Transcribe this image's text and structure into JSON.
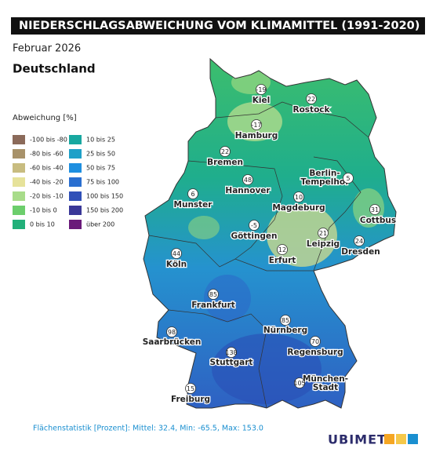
{
  "header": {
    "title": "NIEDERSCHLAGSABWEICHUNG VOM KLIMAMITTEL (1991-2020)",
    "subtitle": "Februar 2026",
    "region": "Deutschland"
  },
  "legend": {
    "title": "Abweichung [%]",
    "items": [
      {
        "label": "-100 bis -80",
        "color": "#8b6a5a"
      },
      {
        "label": "-80 bis -60",
        "color": "#a8926a"
      },
      {
        "label": "-60 bis -40",
        "color": "#c8bc80"
      },
      {
        "label": "-40 bis -20",
        "color": "#e6e29a"
      },
      {
        "label": "-20 bis -10",
        "color": "#a8dc8a"
      },
      {
        "label": "-10 bis 0",
        "color": "#6cce6c"
      },
      {
        "label": "0 bis 10",
        "color": "#22b07a"
      },
      {
        "label": "10 bis 25",
        "color": "#18a8a0"
      },
      {
        "label": "25 bis 50",
        "color": "#1ea0c8"
      },
      {
        "label": "50 bis 75",
        "color": "#1e8fe0"
      },
      {
        "label": "75 bis 100",
        "color": "#2a6fd0"
      },
      {
        "label": "100 bis 150",
        "color": "#3050b8"
      },
      {
        "label": "150 bis 200",
        "color": "#3a3898"
      },
      {
        "label": "über 200",
        "color": "#6a1a7a"
      }
    ]
  },
  "cities": [
    {
      "name": [
        "Kiel"
      ],
      "value": "-19"
    },
    {
      "name": [
        "Rostock"
      ],
      "value": "22"
    },
    {
      "name": [
        "Hamburg"
      ],
      "value": "-17"
    },
    {
      "name": [
        "Bremen"
      ],
      "value": "22"
    },
    {
      "name": [
        "Berlin-",
        "Tempelhof"
      ],
      "value": "5"
    },
    {
      "name": [
        "Hannover"
      ],
      "value": "48"
    },
    {
      "name": [
        "Munster"
      ],
      "value": "6"
    },
    {
      "name": [
        "Magdeburg"
      ],
      "value": "10"
    },
    {
      "name": [
        "Cottbus"
      ],
      "value": "31"
    },
    {
      "name": [
        "Göttingen"
      ],
      "value": "-5"
    },
    {
      "name": [
        "Leipzig"
      ],
      "value": "21"
    },
    {
      "name": [
        "Dresden"
      ],
      "value": "24"
    },
    {
      "name": [
        "Erfurt"
      ],
      "value": "12"
    },
    {
      "name": [
        "Köln"
      ],
      "value": "44"
    },
    {
      "name": [
        "Frankfurt"
      ],
      "value": "85"
    },
    {
      "name": [
        "Nürnberg"
      ],
      "value": "85"
    },
    {
      "name": [
        "Saarbrücken"
      ],
      "value": "98"
    },
    {
      "name": [
        "Regensburg"
      ],
      "value": "70"
    },
    {
      "name": [
        "Stuttgart"
      ],
      "value": "138"
    },
    {
      "name": [
        "München-",
        "Stadt"
      ],
      "value": "105"
    },
    {
      "name": [
        "Freiburg"
      ],
      "value": "15"
    }
  ],
  "footer": {
    "statistics": "Flächenstatistik [Prozent]: Mittel: 32.4, Min: -65.5, Max: 153.0",
    "logo": "UBIMET"
  }
}
